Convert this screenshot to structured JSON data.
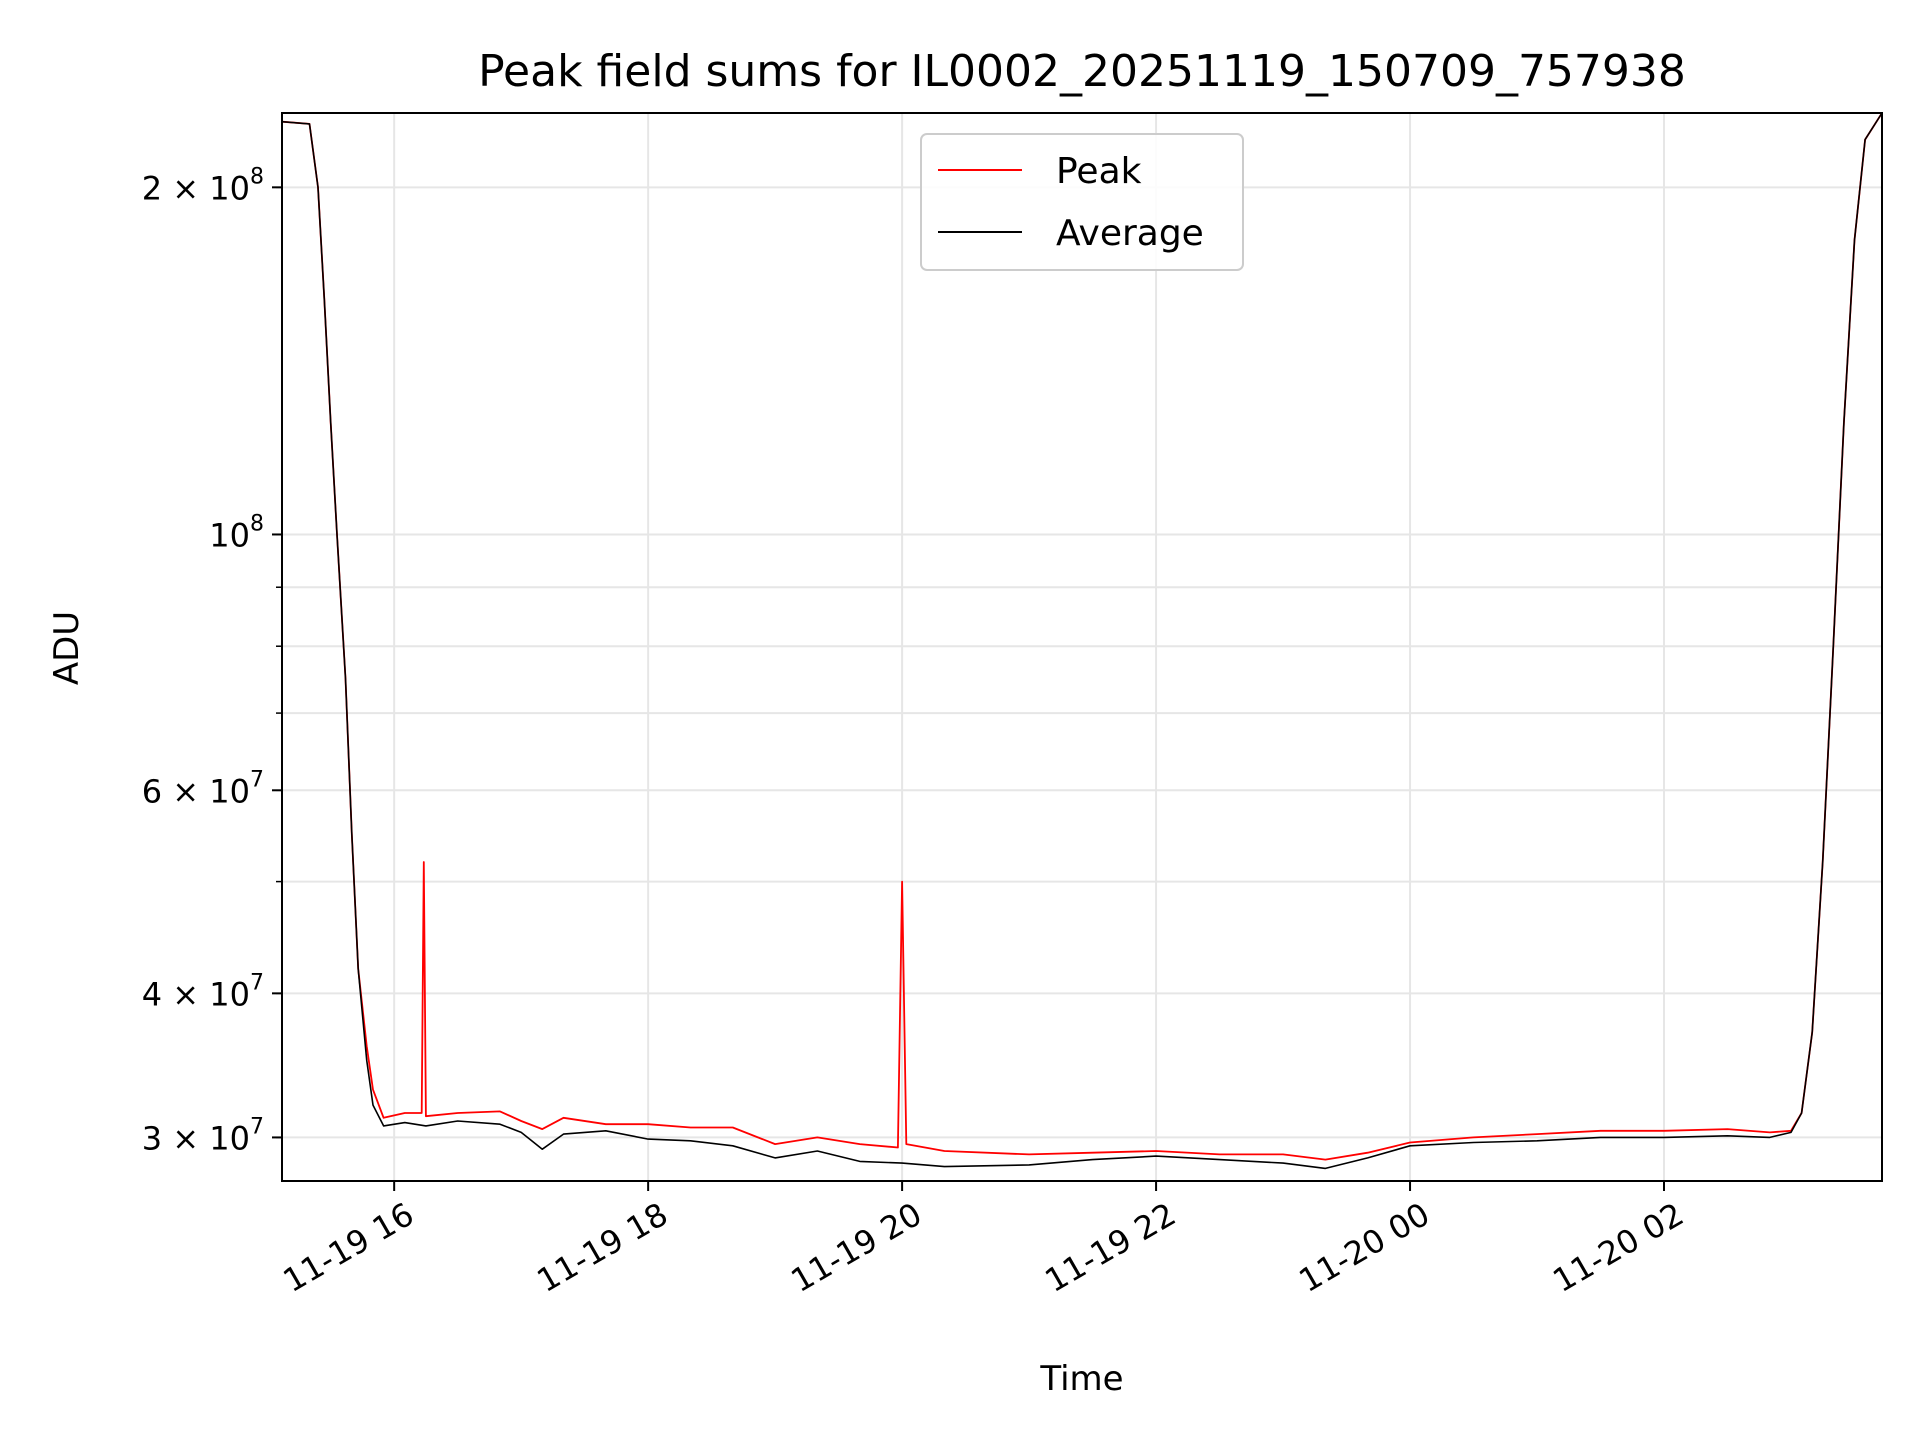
{
  "chart_data": {
    "type": "line",
    "title": "Peak field sums for IL0002_20251119_150709_757938",
    "xlabel": "Time",
    "ylabel": "ADU",
    "yscale": "log",
    "ylim": [
      27500000,
      232000000
    ],
    "xlim": [
      "2025-11-19T15:07",
      "2025-11-20T03:43"
    ],
    "grid": true,
    "legend_position": "upper-center",
    "x_ticks": [
      {
        "value": "2025-11-19T16:00",
        "label": "11-19 16"
      },
      {
        "value": "2025-11-19T18:00",
        "label": "11-19 18"
      },
      {
        "value": "2025-11-19T20:00",
        "label": "11-19 20"
      },
      {
        "value": "2025-11-19T22:00",
        "label": "11-19 22"
      },
      {
        "value": "2025-11-20T00:00",
        "label": "11-20 00"
      },
      {
        "value": "2025-11-20T02:00",
        "label": "11-20 02"
      }
    ],
    "y_ticks": [
      {
        "value": 200000000,
        "mantissa": "2",
        "exponent": "8"
      },
      {
        "value": 100000000,
        "mantissa": "",
        "exponent": "8"
      },
      {
        "value": 60000000,
        "mantissa": "6",
        "exponent": "7"
      },
      {
        "value": 40000000,
        "mantissa": "4",
        "exponent": "7"
      },
      {
        "value": 30000000,
        "mantissa": "3",
        "exponent": "7"
      }
    ],
    "series": [
      {
        "name": "Average",
        "color": "#000000",
        "x": [
          "2025-11-19T15:07",
          "2025-11-19T15:20",
          "2025-11-19T15:24",
          "2025-11-19T15:27",
          "2025-11-19T15:30",
          "2025-11-19T15:33",
          "2025-11-19T15:37",
          "2025-11-19T15:40",
          "2025-11-19T15:43",
          "2025-11-19T15:47",
          "2025-11-19T15:50",
          "2025-11-19T15:55",
          "2025-11-19T16:05",
          "2025-11-19T16:15",
          "2025-11-19T16:30",
          "2025-11-19T16:50",
          "2025-11-19T17:00",
          "2025-11-19T17:10",
          "2025-11-19T17:20",
          "2025-11-19T17:40",
          "2025-11-19T18:00",
          "2025-11-19T18:20",
          "2025-11-19T18:40",
          "2025-11-19T19:00",
          "2025-11-19T19:20",
          "2025-11-19T19:40",
          "2025-11-19T20:00",
          "2025-11-19T20:20",
          "2025-11-19T21:00",
          "2025-11-19T21:30",
          "2025-11-19T22:00",
          "2025-11-19T22:30",
          "2025-11-19T23:00",
          "2025-11-19T23:20",
          "2025-11-19T23:40",
          "2025-11-20T00:00",
          "2025-11-20T00:30",
          "2025-11-20T01:00",
          "2025-11-20T01:30",
          "2025-11-20T02:00",
          "2025-11-20T02:30",
          "2025-11-20T02:50",
          "2025-11-20T03:00",
          "2025-11-20T03:05",
          "2025-11-20T03:10",
          "2025-11-20T03:15",
          "2025-11-20T03:20",
          "2025-11-20T03:25",
          "2025-11-20T03:30",
          "2025-11-20T03:35",
          "2025-11-20T03:43"
        ],
        "y": [
          228000000,
          227000000,
          200000000,
          160000000,
          125000000,
          100000000,
          75000000,
          55000000,
          42000000,
          35000000,
          32000000,
          30700000,
          30900000,
          30700000,
          31000000,
          30800000,
          30300000,
          29300000,
          30200000,
          30400000,
          29900000,
          29800000,
          29500000,
          28800000,
          29200000,
          28600000,
          28500000,
          28300000,
          28400000,
          28700000,
          28900000,
          28700000,
          28500000,
          28200000,
          28800000,
          29500000,
          29700000,
          29800000,
          30000000,
          30000000,
          30100000,
          30000000,
          30300000,
          31500000,
          37000000,
          52000000,
          80000000,
          125000000,
          180000000,
          220000000,
          232000000
        ]
      },
      {
        "name": "Peak",
        "color": "#ff0000",
        "x": [
          "2025-11-19T15:07",
          "2025-11-19T15:20",
          "2025-11-19T15:24",
          "2025-11-19T15:27",
          "2025-11-19T15:30",
          "2025-11-19T15:33",
          "2025-11-19T15:37",
          "2025-11-19T15:40",
          "2025-11-19T15:43",
          "2025-11-19T15:47",
          "2025-11-19T15:50",
          "2025-11-19T15:55",
          "2025-11-19T16:05",
          "2025-11-19T16:13",
          "2025-11-19T16:14",
          "2025-11-19T16:15",
          "2025-11-19T16:30",
          "2025-11-19T16:50",
          "2025-11-19T17:00",
          "2025-11-19T17:10",
          "2025-11-19T17:20",
          "2025-11-19T17:40",
          "2025-11-19T18:00",
          "2025-11-19T18:20",
          "2025-11-19T18:40",
          "2025-11-19T19:00",
          "2025-11-19T19:20",
          "2025-11-19T19:40",
          "2025-11-19T19:58",
          "2025-11-19T20:00",
          "2025-11-19T20:02",
          "2025-11-19T20:20",
          "2025-11-19T21:00",
          "2025-11-19T21:30",
          "2025-11-19T22:00",
          "2025-11-19T22:30",
          "2025-11-19T23:00",
          "2025-11-19T23:20",
          "2025-11-19T23:40",
          "2025-11-20T00:00",
          "2025-11-20T00:30",
          "2025-11-20T01:00",
          "2025-11-20T01:30",
          "2025-11-20T02:00",
          "2025-11-20T02:30",
          "2025-11-20T02:50",
          "2025-11-20T03:00",
          "2025-11-20T03:05",
          "2025-11-20T03:10",
          "2025-11-20T03:15",
          "2025-11-20T03:20",
          "2025-11-20T03:25",
          "2025-11-20T03:30",
          "2025-11-20T03:35",
          "2025-11-20T03:43"
        ],
        "y": [
          228000000,
          227000000,
          200000000,
          160000000,
          125000000,
          100000000,
          75000000,
          55000000,
          42000000,
          36000000,
          33000000,
          31200000,
          31500000,
          31500000,
          52000000,
          31300000,
          31500000,
          31600000,
          31000000,
          30500000,
          31200000,
          30800000,
          30800000,
          30600000,
          30600000,
          29600000,
          30000000,
          29600000,
          29400000,
          50000000,
          29600000,
          29200000,
          29000000,
          29100000,
          29200000,
          29000000,
          29000000,
          28700000,
          29100000,
          29700000,
          30000000,
          30200000,
          30400000,
          30400000,
          30500000,
          30300000,
          30400000,
          31500000,
          37000000,
          52000000,
          80000000,
          125000000,
          180000000,
          220000000,
          232000000
        ]
      }
    ]
  }
}
